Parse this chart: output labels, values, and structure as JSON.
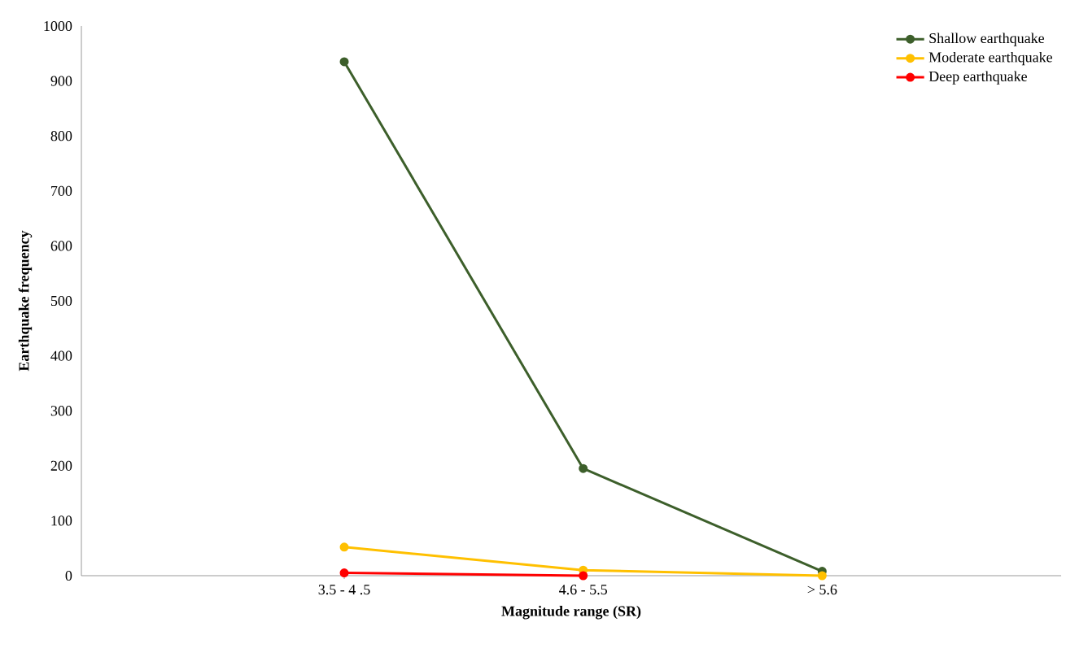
{
  "chart_data": {
    "type": "line",
    "xlabel": "Magnitude range (SR)",
    "ylabel": "Earthquake frequency",
    "categories": [
      "3.5 - 4 .5",
      "4.6 - 5.5",
      "> 5.6"
    ],
    "series": [
      {
        "name": "Shallow earthquake",
        "color": "#3d5f2b",
        "values": [
          935,
          195,
          8
        ]
      },
      {
        "name": "Moderate earthquake",
        "color": "#ffc000",
        "values": [
          52,
          10,
          0
        ]
      },
      {
        "name": "Deep earthquake",
        "color": "#ff0000",
        "values": [
          5,
          0,
          null
        ]
      }
    ],
    "ylim": [
      0,
      1000
    ],
    "yticks": [
      0,
      100,
      200,
      300,
      400,
      500,
      600,
      700,
      800,
      900,
      1000
    ],
    "legend": "top right",
    "marker": "circle",
    "line_style": "solid",
    "grid": false
  }
}
